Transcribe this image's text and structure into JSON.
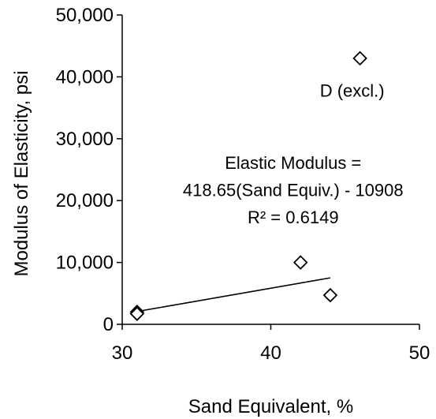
{
  "chart_data": {
    "type": "scatter",
    "xlabel": "Sand Equivalent, %",
    "ylabel": "Modulus of Elasticity, psi",
    "xlim": [
      30,
      50
    ],
    "ylim": [
      0,
      50000
    ],
    "x_ticks": [
      30,
      40,
      50
    ],
    "x_tick_labels": [
      "30",
      "40",
      "50"
    ],
    "y_ticks": [
      0,
      10000,
      20000,
      30000,
      40000,
      50000
    ],
    "y_tick_labels": [
      "0",
      "10,000",
      "20,000",
      "30,000",
      "40,000",
      "50,000"
    ],
    "grid": false,
    "legend": "none",
    "marker": "diamond-open",
    "series": [
      {
        "points": [
          {
            "x": 31,
            "y": 2000
          },
          {
            "x": 31,
            "y": 1700
          },
          {
            "x": 42,
            "y": 10000
          },
          {
            "x": 44,
            "y": 4700
          },
          {
            "x": 46,
            "y": 43000
          }
        ]
      }
    ],
    "trendline": {
      "slope": 418.65,
      "intercept": -10908,
      "x_range": [
        31,
        44
      ]
    },
    "annotations": {
      "excluded_label": "D (excl.)",
      "equation_line1": "Elastic Modulus =",
      "equation_line2": "418.65(Sand Equiv.) - 10908",
      "r_squared": "R² = 0.6149"
    }
  }
}
